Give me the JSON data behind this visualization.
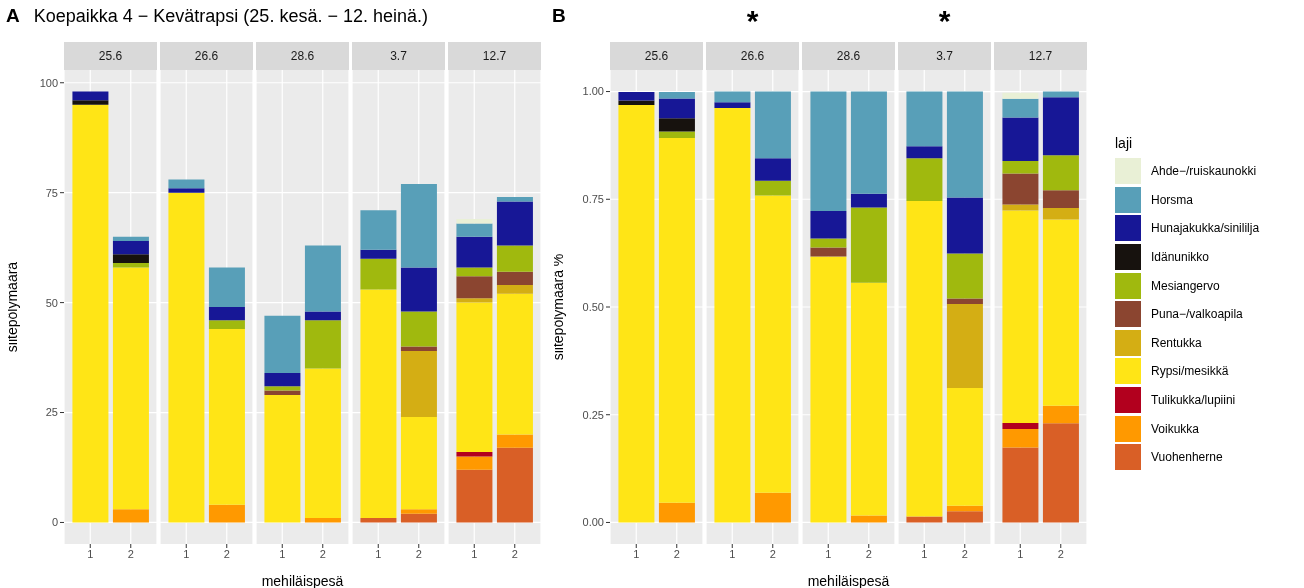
{
  "chart_data": [
    {
      "type": "bar",
      "stacked": true,
      "title": "25.6",
      "annotations": [
        "A",
        "Koepaikka 4 − Kevätrapsi (25. kesä. − 12. heinä.)"
      ],
      "ylabel": "siitepölymäärä",
      "categories": [
        "1",
        "2"
      ],
      "ylim": [
        -4.9,
        102.9
      ],
      "yticks": [
        0,
        25,
        50,
        75,
        100
      ],
      "grid": true,
      "series": [
        {
          "color": "#d95f26",
          "values": [
            null,
            null
          ]
        },
        {
          "color": "#ff9900",
          "values": [
            null,
            3
          ]
        },
        {
          "color": "#b2001e",
          "values": [
            null,
            null
          ]
        },
        {
          "color": "#ffe516",
          "values": [
            95,
            55
          ]
        },
        {
          "color": "#d4ae14",
          "values": [
            null,
            null
          ]
        },
        {
          "color": "#8b4530",
          "values": [
            null,
            null
          ]
        },
        {
          "color": "#a0b90e",
          "values": [
            null,
            1
          ]
        },
        {
          "color": "#17120e",
          "values": [
            1,
            2
          ]
        },
        {
          "color": "#171796",
          "values": [
            2,
            3
          ]
        },
        {
          "color": "#589fb8",
          "values": [
            null,
            1
          ]
        },
        {
          "color": "#e9f0d6",
          "values": [
            null,
            null
          ]
        }
      ]
    },
    {
      "type": "bar",
      "stacked": true,
      "title": "26.6",
      "tick_labels": "x",
      "categories": [
        "1",
        "2"
      ],
      "ylim": [
        -4.9,
        102.9
      ],
      "yticks": [
        0,
        25,
        50,
        75,
        100
      ],
      "grid": true,
      "series": [
        {
          "color": "#d95f26",
          "values": [
            null,
            null
          ]
        },
        {
          "color": "#ff9900",
          "values": [
            null,
            4
          ]
        },
        {
          "color": "#b2001e",
          "values": [
            null,
            null
          ]
        },
        {
          "color": "#ffe516",
          "values": [
            75,
            40
          ]
        },
        {
          "color": "#d4ae14",
          "values": [
            null,
            null
          ]
        },
        {
          "color": "#8b4530",
          "values": [
            null,
            null
          ]
        },
        {
          "color": "#a0b90e",
          "values": [
            null,
            2
          ]
        },
        {
          "color": "#17120e",
          "values": [
            null,
            null
          ]
        },
        {
          "color": "#171796",
          "values": [
            1,
            3
          ]
        },
        {
          "color": "#589fb8",
          "values": [
            2,
            9
          ]
        },
        {
          "color": "#e9f0d6",
          "values": [
            null,
            null
          ]
        }
      ]
    },
    {
      "type": "bar",
      "stacked": true,
      "title": "28.6",
      "tick_labels": "x",
      "xlabel": "mehiläispesä",
      "categories": [
        "1",
        "2"
      ],
      "ylim": [
        -4.9,
        102.9
      ],
      "yticks": [
        0,
        25,
        50,
        75,
        100
      ],
      "grid": true,
      "series": [
        {
          "color": "#d95f26",
          "values": [
            null,
            null
          ]
        },
        {
          "color": "#ff9900",
          "values": [
            null,
            1
          ]
        },
        {
          "color": "#b2001e",
          "values": [
            null,
            null
          ]
        },
        {
          "color": "#ffe516",
          "values": [
            29,
            34
          ]
        },
        {
          "color": "#d4ae14",
          "values": [
            null,
            null
          ]
        },
        {
          "color": "#8b4530",
          "values": [
            1,
            null
          ]
        },
        {
          "color": "#a0b90e",
          "values": [
            1,
            11
          ]
        },
        {
          "color": "#17120e",
          "values": [
            null,
            null
          ]
        },
        {
          "color": "#171796",
          "values": [
            3,
            2
          ]
        },
        {
          "color": "#589fb8",
          "values": [
            13,
            15
          ]
        },
        {
          "color": "#e9f0d6",
          "values": [
            null,
            null
          ]
        }
      ]
    },
    {
      "type": "bar",
      "stacked": true,
      "title": "3.7",
      "tick_labels": "x",
      "categories": [
        "1",
        "2"
      ],
      "ylim": [
        -4.9,
        102.9
      ],
      "yticks": [
        0,
        25,
        50,
        75,
        100
      ],
      "grid": true,
      "series": [
        {
          "color": "#d95f26",
          "values": [
            1,
            2
          ]
        },
        {
          "color": "#ff9900",
          "values": [
            null,
            1
          ]
        },
        {
          "color": "#b2001e",
          "values": [
            null,
            null
          ]
        },
        {
          "color": "#ffe516",
          "values": [
            52,
            21
          ]
        },
        {
          "color": "#d4ae14",
          "values": [
            null,
            15
          ]
        },
        {
          "color": "#8b4530",
          "values": [
            null,
            1
          ]
        },
        {
          "color": "#a0b90e",
          "values": [
            7,
            8
          ]
        },
        {
          "color": "#17120e",
          "values": [
            null,
            null
          ]
        },
        {
          "color": "#171796",
          "values": [
            2,
            10
          ]
        },
        {
          "color": "#589fb8",
          "values": [
            9,
            19
          ]
        },
        {
          "color": "#e9f0d6",
          "values": [
            null,
            null
          ]
        }
      ]
    },
    {
      "type": "bar",
      "stacked": true,
      "title": "12.7",
      "tick_labels": "x",
      "categories": [
        "1",
        "2"
      ],
      "ylim": [
        -4.9,
        102.9
      ],
      "yticks": [
        0,
        25,
        50,
        75,
        100
      ],
      "grid": true,
      "series": [
        {
          "color": "#d95f26",
          "values": [
            12,
            17
          ]
        },
        {
          "color": "#ff9900",
          "values": [
            3,
            3
          ]
        },
        {
          "color": "#b2001e",
          "values": [
            1,
            null
          ]
        },
        {
          "color": "#ffe516",
          "values": [
            34,
            32
          ]
        },
        {
          "color": "#d4ae14",
          "values": [
            1,
            2
          ]
        },
        {
          "color": "#8b4530",
          "values": [
            5,
            3
          ]
        },
        {
          "color": "#a0b90e",
          "values": [
            2,
            6
          ]
        },
        {
          "color": "#17120e",
          "values": [
            null,
            null
          ]
        },
        {
          "color": "#171796",
          "values": [
            7,
            10
          ]
        },
        {
          "color": "#589fb8",
          "values": [
            3,
            1
          ]
        },
        {
          "color": "#e9f0d6",
          "values": [
            1,
            null
          ]
        }
      ]
    },
    {
      "type": "bar",
      "stacked": true,
      "title": "25.6",
      "annotations": [
        "B"
      ],
      "ylabel": "siitepölymäärä %",
      "categories": [
        "1",
        "2"
      ],
      "ylim": [
        -0.05,
        1.05
      ],
      "yticks": [
        {
          "value": 0,
          "label": "0.00"
        },
        {
          "value": 0.25,
          "label": "0.25"
        },
        {
          "value": 0.5,
          "label": "0.50"
        },
        {
          "value": 0.75,
          "label": "0.75"
        },
        {
          "value": 1,
          "label": "1.00"
        }
      ],
      "grid": true,
      "series": [
        {
          "color": "#d95f26",
          "values": [
            null,
            null
          ]
        },
        {
          "color": "#ff9900",
          "values": [
            null,
            0.046
          ]
        },
        {
          "color": "#b2001e",
          "values": [
            null,
            null
          ]
        },
        {
          "color": "#ffe516",
          "values": [
            0.969,
            0.846
          ]
        },
        {
          "color": "#d4ae14",
          "values": [
            null,
            null
          ]
        },
        {
          "color": "#8b4530",
          "values": [
            null,
            null
          ]
        },
        {
          "color": "#a0b90e",
          "values": [
            null,
            0.015
          ]
        },
        {
          "color": "#17120e",
          "values": [
            0.01,
            0.031
          ]
        },
        {
          "color": "#171796",
          "values": [
            0.02,
            0.046
          ]
        },
        {
          "color": "#589fb8",
          "values": [
            null,
            0.015
          ]
        },
        {
          "color": "#e9f0d6",
          "values": [
            null,
            null
          ]
        }
      ]
    },
    {
      "type": "bar",
      "stacked": true,
      "title": "26.6",
      "annotations": [
        "*"
      ],
      "tick_labels": "x",
      "categories": [
        "1",
        "2"
      ],
      "ylim": [
        -0.05,
        1.05
      ],
      "yticks": [
        0,
        0.25,
        0.5,
        0.75,
        1
      ],
      "grid": true,
      "series": [
        {
          "color": "#d95f26",
          "values": [
            null,
            null
          ]
        },
        {
          "color": "#ff9900",
          "values": [
            null,
            0.069
          ]
        },
        {
          "color": "#b2001e",
          "values": [
            null,
            null
          ]
        },
        {
          "color": "#ffe516",
          "values": [
            0.962,
            0.69
          ]
        },
        {
          "color": "#d4ae14",
          "values": [
            null,
            null
          ]
        },
        {
          "color": "#8b4530",
          "values": [
            null,
            null
          ]
        },
        {
          "color": "#a0b90e",
          "values": [
            null,
            0.034
          ]
        },
        {
          "color": "#17120e",
          "values": [
            null,
            null
          ]
        },
        {
          "color": "#171796",
          "values": [
            0.013,
            0.052
          ]
        },
        {
          "color": "#589fb8",
          "values": [
            0.025,
            0.155
          ]
        },
        {
          "color": "#e9f0d6",
          "values": [
            null,
            null
          ]
        }
      ]
    },
    {
      "type": "bar",
      "stacked": true,
      "title": "28.6",
      "tick_labels": "x",
      "xlabel": "mehiläispesä",
      "categories": [
        "1",
        "2"
      ],
      "ylim": [
        -0.05,
        1.05
      ],
      "yticks": [
        0,
        0.25,
        0.5,
        0.75,
        1
      ],
      "grid": true,
      "series": [
        {
          "color": "#d95f26",
          "values": [
            null,
            null
          ]
        },
        {
          "color": "#ff9900",
          "values": [
            null,
            0.016
          ]
        },
        {
          "color": "#b2001e",
          "values": [
            null,
            null
          ]
        },
        {
          "color": "#ffe516",
          "values": [
            0.617,
            0.54
          ]
        },
        {
          "color": "#d4ae14",
          "values": [
            null,
            null
          ]
        },
        {
          "color": "#8b4530",
          "values": [
            0.021,
            null
          ]
        },
        {
          "color": "#a0b90e",
          "values": [
            0.021,
            0.175
          ]
        },
        {
          "color": "#17120e",
          "values": [
            null,
            null
          ]
        },
        {
          "color": "#171796",
          "values": [
            0.064,
            0.032
          ]
        },
        {
          "color": "#589fb8",
          "values": [
            0.277,
            0.237
          ]
        },
        {
          "color": "#e9f0d6",
          "values": [
            null,
            null
          ]
        }
      ]
    },
    {
      "type": "bar",
      "stacked": true,
      "title": "3.7",
      "annotations": [
        "*"
      ],
      "tick_labels": "x",
      "categories": [
        "1",
        "2"
      ],
      "ylim": [
        -0.05,
        1.05
      ],
      "yticks": [
        0,
        0.25,
        0.5,
        0.75,
        1
      ],
      "grid": true,
      "series": [
        {
          "color": "#d95f26",
          "values": [
            0.014,
            0.026
          ]
        },
        {
          "color": "#ff9900",
          "values": [
            null,
            0.013
          ]
        },
        {
          "color": "#b2001e",
          "values": [
            null,
            null
          ]
        },
        {
          "color": "#ffe516",
          "values": [
            0.732,
            0.273
          ]
        },
        {
          "color": "#d4ae14",
          "values": [
            null,
            0.195
          ]
        },
        {
          "color": "#8b4530",
          "values": [
            null,
            0.013
          ]
        },
        {
          "color": "#a0b90e",
          "values": [
            0.099,
            0.104
          ]
        },
        {
          "color": "#17120e",
          "values": [
            null,
            null
          ]
        },
        {
          "color": "#171796",
          "values": [
            0.028,
            0.13
          ]
        },
        {
          "color": "#589fb8",
          "values": [
            0.127,
            0.246
          ]
        },
        {
          "color": "#e9f0d6",
          "values": [
            null,
            null
          ]
        }
      ]
    },
    {
      "type": "bar",
      "stacked": true,
      "title": "12.7",
      "tick_labels": "x",
      "legend": "right",
      "legend_title": "laji",
      "categories": [
        "1",
        "2"
      ],
      "ylim": [
        -0.05,
        1.05
      ],
      "yticks": [
        0,
        0.25,
        0.5,
        0.75,
        1
      ],
      "grid": true,
      "series": [
        {
          "name": "Vuohenherne",
          "color": "#d95f26",
          "values": [
            0.174,
            0.23
          ]
        },
        {
          "name": "Voikukka",
          "color": "#ff9900",
          "values": [
            0.043,
            0.041
          ]
        },
        {
          "name": "Tulikukka/lupiini",
          "color": "#b2001e",
          "values": [
            0.014,
            null
          ]
        },
        {
          "name": "Rypsi/mesikkä",
          "color": "#ffe516",
          "values": [
            0.493,
            0.432
          ]
        },
        {
          "name": "Rentukka",
          "color": "#d4ae14",
          "values": [
            0.014,
            0.027
          ]
        },
        {
          "name": "Puna−/valkoapila",
          "color": "#8b4530",
          "values": [
            0.072,
            0.041
          ]
        },
        {
          "name": "Mesiangervo",
          "color": "#a0b90e",
          "values": [
            0.029,
            0.081
          ]
        },
        {
          "name": "Idänunikko",
          "color": "#17120e",
          "values": [
            null,
            null
          ]
        },
        {
          "name": "Hunajakukka/sinililja",
          "color": "#171796",
          "values": [
            0.101,
            0.135
          ]
        },
        {
          "name": "Horsma",
          "color": "#589fb8",
          "values": [
            0.043,
            0.013
          ]
        },
        {
          "name": "Ahde−/ruiskaunokki",
          "color": "#e9f0d6",
          "values": [
            0.014,
            null
          ]
        }
      ]
    }
  ]
}
